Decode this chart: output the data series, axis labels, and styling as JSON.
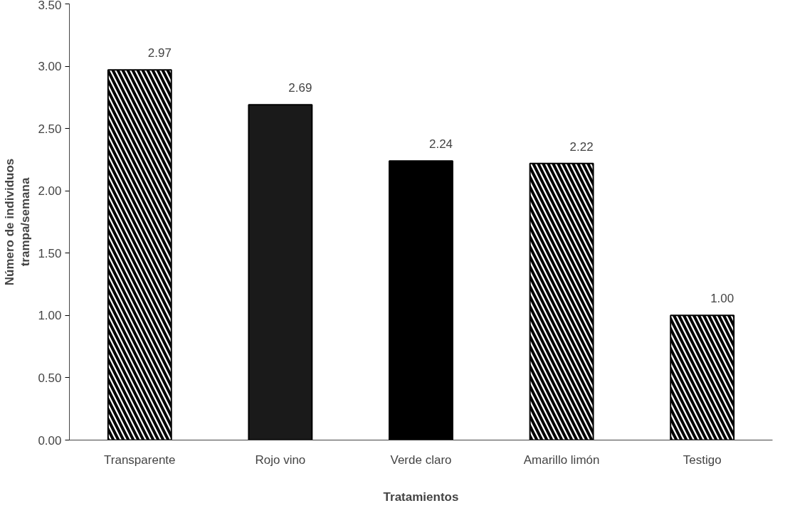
{
  "chart_data": {
    "type": "bar",
    "xlabel": "Tratamientos",
    "ylabel": "Número de individuos\ntrampa/semana",
    "categories": [
      "Transparente",
      "Rojo vino",
      "Verde claro",
      "Amarillo limón",
      "Testigo"
    ],
    "values": [
      2.97,
      2.69,
      2.24,
      2.22,
      1.0
    ],
    "colors": [
      "#ffffff",
      "#1a1a1a",
      "#000000",
      "#ffffff",
      "#ffffff"
    ],
    "ylim": [
      0,
      3.5
    ],
    "yticks": [
      {
        "value": 0,
        "label": "0.00"
      },
      {
        "value": 0.5,
        "label": "0.50"
      },
      {
        "value": 1,
        "label": "1.00"
      },
      {
        "value": 1.5,
        "label": "1.50"
      },
      {
        "value": 2,
        "label": "2.00"
      },
      {
        "value": 2.5,
        "label": "2.50"
      },
      {
        "value": 3,
        "label": "3.00"
      },
      {
        "value": 3.5,
        "label": "3.50"
      }
    ],
    "value_labels": [
      "2.97",
      "2.69",
      "2.24",
      "2.22",
      "1.00"
    ],
    "grid": false
  }
}
